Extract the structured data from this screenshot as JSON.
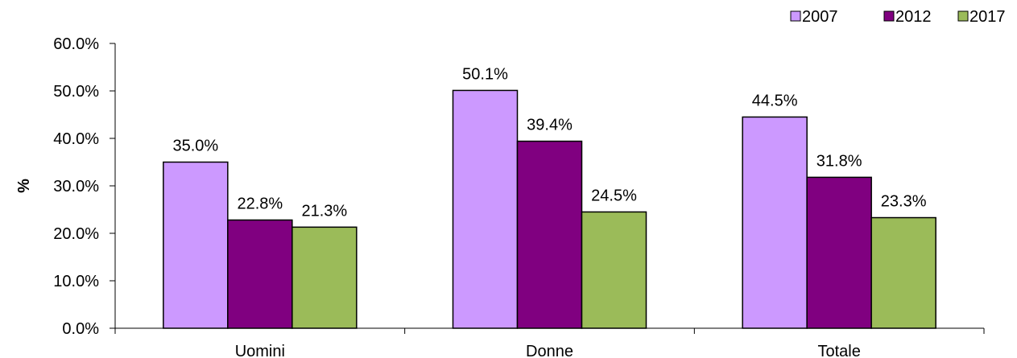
{
  "chart_data": {
    "type": "bar",
    "title": "",
    "xlabel": "",
    "ylabel": "%",
    "categories": [
      "Uomini",
      "Donne",
      "Totale"
    ],
    "series": [
      {
        "name": "2007",
        "values": [
          35.0,
          50.1,
          44.5
        ],
        "color": "#cc99ff"
      },
      {
        "name": "2012",
        "values": [
          22.8,
          39.4,
          31.8
        ],
        "color": "#800080"
      },
      {
        "name": "2017",
        "values": [
          21.3,
          24.5,
          23.3
        ],
        "color": "#9bbb59"
      }
    ],
    "data_labels": [
      [
        "35.0%",
        "50.1%",
        "44.5%"
      ],
      [
        "22.8%",
        "39.4%",
        "31.8%"
      ],
      [
        "21.3%",
        "24.5%",
        "23.3%"
      ]
    ],
    "ylim": [
      0,
      60
    ],
    "yticks": [
      "0.0%",
      "10.0%",
      "20.0%",
      "30.0%",
      "40.0%",
      "50.0%",
      "60.0%"
    ],
    "grid": false,
    "legend_position": "top-right"
  }
}
